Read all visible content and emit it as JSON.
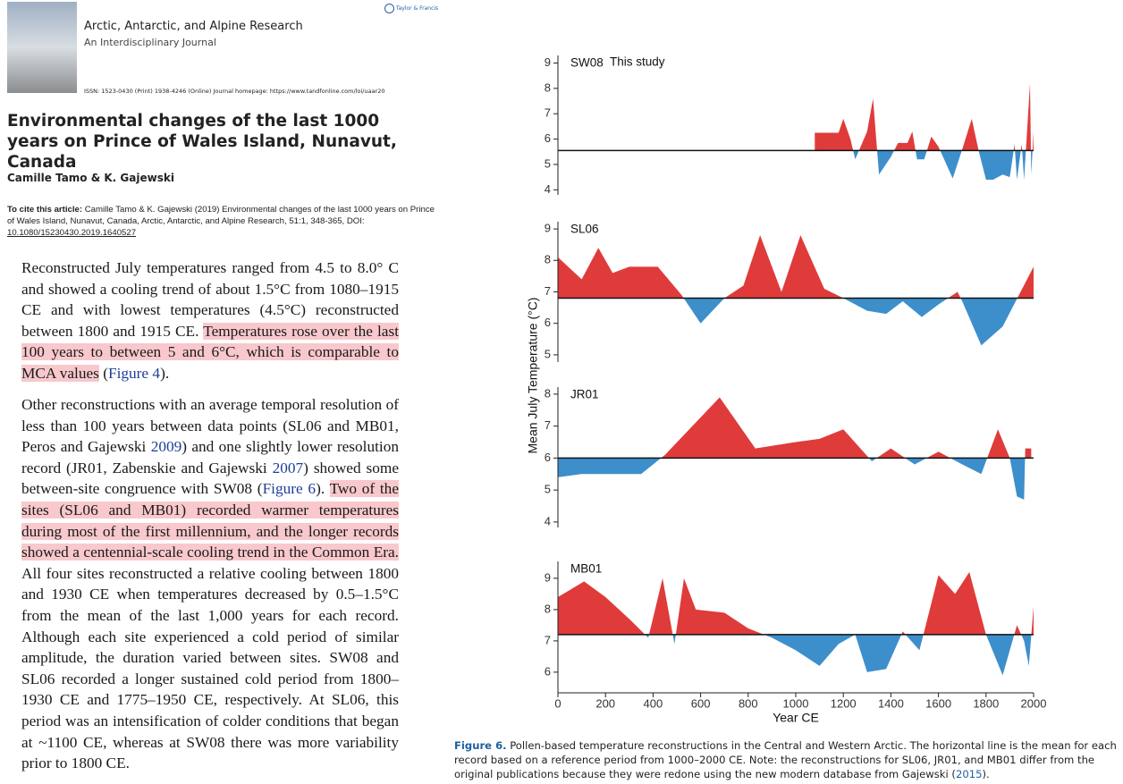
{
  "document": {
    "journal": "Arctic, Antarctic, and Alpine Research",
    "journal_subtitle": "An Interdisciplinary Journal",
    "issn": "ISSN: 1523-0430 (Print) 1938-4246 (Online) Journal homepage: https://www.tandfonline.com/loi/uaar20",
    "publisher": "Taylor & Francis",
    "title": "Environmental changes of the last 1000 years on Prince of Wales Island, Nunavut, Canada",
    "authors": "Camille Tamo & K. Gajewski",
    "cite_label": "To cite this article:",
    "cite_text": "Camille Tamo & K. Gajewski (2019) Environmental changes of the last 1000 years on Prince of Wales Island, Nunavut, Canada, Arctic, Antarctic, and Alpine Research, 51:1, 348-365, DOI: ",
    "doi": "10.1080/15230430.2019.1640527",
    "paragraphs": [
      [
        {
          "text": "Reconstructed July temperatures ranged from 4.5 to 8.0° C and showed a cooling trend of about 1.5°C from 1080–1915 CE and with lowest temperatures (4.5°C) reconstructed between 1800 and 1915 CE. "
        },
        {
          "text": "Temperatures rose over the last 100 years to between 5 and 6°C, which is comparable to MCA values",
          "highlight": true
        },
        {
          "text": " ("
        },
        {
          "text": "Figure 4",
          "link": true
        },
        {
          "text": ")."
        }
      ],
      [
        {
          "text": "Other reconstructions with an average temporal resolution of less than 100 years between data points (SL06 and MB01, Peros and Gajewski "
        },
        {
          "text": "2009",
          "link": true
        },
        {
          "text": ") and one slightly lower resolution record (JR01, Zabenskie and Gajewski "
        },
        {
          "text": "2007",
          "link": true
        },
        {
          "text": ") showed some between-site congruence with SW08 ("
        },
        {
          "text": "Figure 6",
          "link": true
        },
        {
          "text": "). "
        },
        {
          "text": "Two of the sites (SL06 and MB01) recorded warmer temperatures during most of the first millennium, and the longer records showed a centennial-scale cooling trend in the Common Era.",
          "highlight": true
        },
        {
          "text": " All four sites reconstructed a relative cooling between 1800 and 1930 CE when temperatures decreased by 0.5–1.5°C from the mean of the last 1,000 years for each record. Although each site experienced a cold period of similar amplitude, the duration varied between sites. SW08 and SL06 recorded a longer sustained cold period from 1800–1930 CE and 1775–1950 CE, respectively. At SL06, this period was an intensification of colder conditions that began at ~1100 CE, whereas at SW08 there was more variability prior to 1800 CE."
        }
      ]
    ]
  },
  "figure": {
    "ylabel": "Mean July Temperature (°C)",
    "xlabel": "Year CE",
    "caption": [
      {
        "text": "Figure 6.",
        "label": true
      },
      {
        "text": " Pollen-based temperature reconstructions in the Central and Western Arctic. The horizontal line is the mean for each record based on a reference period from 1000–2000 CE. Note: the reconstructions for SL06, JR01, and MB01 differ from the original publications because they were redone using the new modern database from Gajewski ("
      },
      {
        "text": "2015",
        "link": true
      },
      {
        "text": ")."
      }
    ]
  },
  "chart_data": [
    {
      "type": "area",
      "title": "SW08",
      "subtitle": "This study",
      "above_color": "#e03b3b",
      "below_color": "#3d8fcc",
      "mean": 5.55,
      "xlim": [
        0,
        2000
      ],
      "ylim": [
        3.8,
        9.3
      ],
      "yticks": [
        4,
        5,
        6,
        7,
        8,
        9
      ],
      "x": [
        1080,
        1180,
        1200,
        1230,
        1250,
        1300,
        1325,
        1350,
        1400,
        1430,
        1470,
        1490,
        1510,
        1540,
        1570,
        1600,
        1660,
        1700,
        1740,
        1770,
        1800,
        1830,
        1870,
        1900,
        1920,
        1930,
        1950,
        1960,
        1985,
        1990,
        2000
      ],
      "values": [
        6.25,
        6.25,
        6.8,
        6.0,
        5.2,
        6.3,
        7.6,
        4.6,
        5.3,
        5.85,
        5.85,
        6.3,
        5.2,
        5.2,
        6.1,
        5.7,
        4.45,
        5.6,
        6.8,
        5.5,
        4.4,
        4.4,
        4.6,
        4.5,
        5.8,
        4.4,
        5.8,
        4.4,
        8.2,
        4.6,
        6.3
      ]
    },
    {
      "type": "area",
      "title": "SL06",
      "above_color": "#e03b3b",
      "below_color": "#3d8fcc",
      "mean": 6.8,
      "xlim": [
        0,
        2000
      ],
      "ylim": [
        4.77,
        9.23
      ],
      "yticks": [
        5,
        6,
        7,
        8,
        9
      ],
      "x": [
        0,
        100,
        170,
        230,
        300,
        420,
        520,
        600,
        700,
        780,
        850,
        940,
        1020,
        1120,
        1200,
        1300,
        1380,
        1450,
        1530,
        1600,
        1680,
        1700,
        1780,
        1870,
        2000
      ],
      "values": [
        8.1,
        7.4,
        8.4,
        7.6,
        7.8,
        7.8,
        6.9,
        6.0,
        6.8,
        7.2,
        8.8,
        7.0,
        8.8,
        7.1,
        6.8,
        6.4,
        6.3,
        6.7,
        6.2,
        6.6,
        7.0,
        6.7,
        5.3,
        5.9,
        7.8
      ]
    },
    {
      "type": "area",
      "title": "JR01",
      "above_color": "#e03b3b",
      "below_color": "#3d8fcc",
      "mean": 6.0,
      "xlim": [
        0,
        2000
      ],
      "ylim": [
        3.83,
        8.22
      ],
      "yticks": [
        4,
        5,
        6,
        7,
        8
      ],
      "x": [
        0,
        100,
        350,
        450,
        680,
        830,
        1000,
        1100,
        1200,
        1320,
        1400,
        1500,
        1600,
        1700,
        1780,
        1850,
        1900,
        1930,
        1960,
        1965,
        1990
      ],
      "values": [
        5.4,
        5.5,
        5.5,
        6.1,
        7.9,
        6.3,
        6.5,
        6.6,
        6.9,
        5.9,
        6.3,
        5.8,
        6.2,
        5.8,
        5.5,
        6.9,
        6.0,
        4.8,
        4.7,
        6.3,
        6.3
      ]
    },
    {
      "type": "area",
      "title": "MB01",
      "above_color": "#e03b3b",
      "below_color": "#3d8fcc",
      "mean": 7.2,
      "xlim": [
        0,
        2000
      ],
      "ylim": [
        5.34,
        9.54
      ],
      "yticks": [
        6,
        7,
        8,
        9
      ],
      "xticks": [
        0,
        200,
        400,
        600,
        800,
        1000,
        1200,
        1400,
        1600,
        1800,
        2000
      ],
      "x": [
        0,
        110,
        200,
        300,
        380,
        440,
        490,
        530,
        580,
        700,
        800,
        900,
        1000,
        1100,
        1180,
        1250,
        1300,
        1380,
        1450,
        1520,
        1600,
        1670,
        1730,
        1800,
        1870,
        1930,
        1960,
        1980,
        2000
      ],
      "values": [
        8.4,
        8.9,
        8.4,
        7.7,
        7.1,
        9.0,
        6.9,
        9.0,
        8.0,
        7.9,
        7.4,
        7.1,
        6.7,
        6.2,
        6.9,
        7.2,
        6.0,
        6.1,
        7.3,
        6.7,
        9.1,
        8.5,
        9.2,
        7.2,
        5.9,
        7.5,
        7.0,
        6.2,
        8.1
      ]
    }
  ]
}
